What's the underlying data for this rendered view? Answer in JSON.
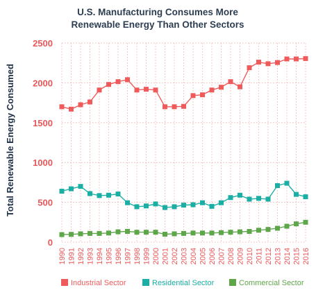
{
  "chart_data": {
    "type": "line",
    "title_lines": [
      "U.S. Manufacturing Consumes More",
      "Renewable Energy Than Other Sectors"
    ],
    "xlabel": "",
    "ylabel": "Total Renewable Energy Consumed",
    "ylim": [
      0,
      2500
    ],
    "yticks": [
      0,
      500,
      1000,
      1500,
      2000,
      2500
    ],
    "grid": true,
    "legend_position": "bottom",
    "x": [
      "1990",
      "1991",
      "1992",
      "1993",
      "1994",
      "1995",
      "1996",
      "1997",
      "1998",
      "1999",
      "2000",
      "2001",
      "2002",
      "2003",
      "2004",
      "2005",
      "2006",
      "2007",
      "2008",
      "2009",
      "2010",
      "2011",
      "2012",
      "2013",
      "2014",
      "2015",
      "2016"
    ],
    "series": [
      {
        "name": "Industrial Sector",
        "color": "#ef5b5b",
        "values": [
          1700,
          1670,
          1725,
          1760,
          1910,
          1980,
          2015,
          2040,
          1910,
          1920,
          1910,
          1700,
          1700,
          1705,
          1840,
          1850,
          1910,
          1945,
          2015,
          1950,
          2190,
          2260,
          2240,
          2255,
          2300,
          2300,
          2305
        ]
      },
      {
        "name": "Residential Sector",
        "color": "#1aaea4",
        "values": [
          640,
          670,
          700,
          610,
          585,
          590,
          605,
          495,
          445,
          455,
          480,
          435,
          445,
          465,
          470,
          495,
          450,
          495,
          560,
          590,
          540,
          550,
          540,
          710,
          740,
          600,
          570
        ]
      },
      {
        "name": "Commercial Sector",
        "color": "#5da64a",
        "values": [
          95,
          98,
          105,
          110,
          110,
          115,
          130,
          135,
          125,
          125,
          125,
          100,
          105,
          110,
          115,
          115,
          115,
          120,
          125,
          130,
          135,
          150,
          160,
          175,
          200,
          230,
          250
        ]
      }
    ]
  }
}
